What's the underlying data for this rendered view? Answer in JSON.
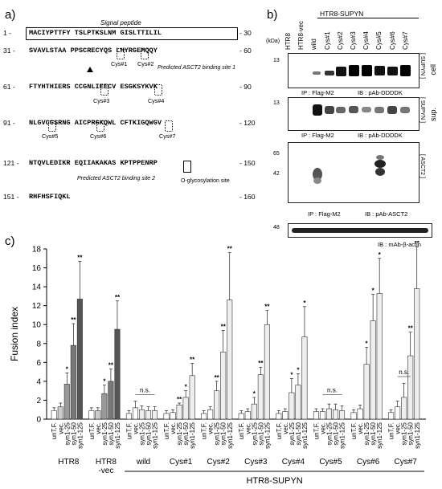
{
  "panel_a": {
    "label": "a)",
    "signal_peptide_title": "Signal peptide",
    "rows": [
      {
        "start": "1 -",
        "seq": "MACIYPTTFY TSLPTKSLNM GISLTTILIL",
        "end": "- 30"
      },
      {
        "start": "31 -",
        "seq": "SVAVLSTAA PPSCRECYQS LHYRGEMQQY",
        "end": "- 60"
      },
      {
        "start": "61 -",
        "seq": "FTYHTHIERS CCGNLIEECV ESGKSYKVK",
        "end": "- 90"
      },
      {
        "start": "91 -",
        "seq": "NLGVCGSRNG AICPRGKQWL CFTKIGQWGV",
        "end": "- 120"
      },
      {
        "start": "121 -",
        "seq": "NTQVLEDIKR EQIIAKAKAS KPTPPENRP",
        "end": "- 150"
      },
      {
        "start": "151 -",
        "seq": "RHFHSFIQKL",
        "end": "- 160"
      }
    ],
    "site1_note": "Predicted ASCT2 binding site 1",
    "site2_note": "Predicted ASCT2 binding site 2",
    "glyco_note": "O-glycosylation site",
    "cys_labels": [
      "Cys#1",
      "Cys#2",
      "Cys#3",
      "Cys#4",
      "Cys#5",
      "Cys#6",
      "Cys#7"
    ]
  },
  "panel_b": {
    "label": "b)",
    "lanes": [
      "HTR8",
      "HTR8-vec",
      "wild",
      "Cys#1",
      "Cys#2",
      "Cys#3",
      "Cys#4",
      "Cys#5",
      "Cys#6",
      "Cys#7"
    ],
    "group_label": "HTR8-SUPYN",
    "kda": "(kDa)",
    "blots": [
      {
        "markers": [
          "13"
        ],
        "side": "[ SUPYN ]",
        "side2": "cell",
        "ip": "IP : Flag-M2",
        "ib": "IB : pAb-DDDDK"
      },
      {
        "markers": [
          "13"
        ],
        "side": "[ SUPYN ]",
        "side2": "sup.",
        "ip": "IP : Flag-M2",
        "ib": "IB : pAb-DDDDK"
      },
      {
        "markers": [
          "65",
          "42"
        ],
        "side": "[ ASCT2 ]",
        "side2": "",
        "ip": "IP : Flag-M2",
        "ib": "IB : pAb-ASCT2"
      },
      {
        "markers": [
          "48"
        ],
        "side": "",
        "side2": "",
        "ip": "",
        "ib": "IB : mAb-β-actin"
      }
    ]
  },
  "panel_c": {
    "label": "c)",
    "group_label": "HTR8-SUPYN",
    "chart_data": {
      "type": "bar",
      "ylabel": "Fusion index",
      "ylim": [
        0,
        18
      ],
      "yticks": [
        0,
        2,
        4,
        6,
        8,
        10,
        12,
        14,
        16,
        18
      ],
      "categories": [
        "unT.F.",
        "vec.",
        "syn1-25",
        "syn1-50",
        "syn1-125"
      ],
      "groups": [
        {
          "name": "HTR8",
          "values": [
            0.9,
            1.3,
            3.7,
            7.8,
            12.7
          ],
          "errors": [
            0.3,
            0.4,
            1.2,
            2.3,
            4.0
          ],
          "sig": [
            "",
            "",
            "*",
            "**",
            "**"
          ]
        },
        {
          "name": "HTR8\n-vec",
          "values": [
            0.9,
            0.9,
            2.7,
            4.0,
            9.5
          ],
          "errors": [
            0.3,
            0.3,
            0.9,
            1.3,
            3.0
          ],
          "sig": [
            "",
            "",
            "*",
            "**",
            "**"
          ]
        },
        {
          "name": "wild",
          "values": [
            0.6,
            1.2,
            1.0,
            0.9,
            0.9
          ],
          "errors": [
            0.3,
            0.7,
            0.4,
            0.4,
            0.4
          ],
          "sig": [
            "",
            "",
            "",
            "",
            ""
          ],
          "ns": "n.s."
        },
        {
          "name": "Cys#1",
          "values": [
            0.6,
            0.7,
            1.5,
            2.3,
            4.6
          ],
          "errors": [
            0.3,
            0.3,
            0.2,
            0.7,
            1.3
          ],
          "sig": [
            "",
            "",
            "**",
            "*",
            "**"
          ]
        },
        {
          "name": "Cys#2",
          "values": [
            0.6,
            1.0,
            3.0,
            7.1,
            12.6
          ],
          "errors": [
            0.3,
            0.3,
            1.0,
            2.3,
            5.0
          ],
          "sig": [
            "",
            "",
            "**",
            "**",
            "**"
          ]
        },
        {
          "name": "Cys#3",
          "values": [
            0.6,
            0.8,
            1.6,
            4.7,
            10.0
          ],
          "errors": [
            0.3,
            0.3,
            0.7,
            0.8,
            1.5
          ],
          "sig": [
            "",
            "",
            "*",
            "**",
            "**"
          ]
        },
        {
          "name": "Cys#4",
          "values": [
            0.6,
            0.8,
            2.8,
            3.6,
            8.7
          ],
          "errors": [
            0.3,
            0.3,
            1.5,
            1.2,
            3.2
          ],
          "sig": [
            "",
            "",
            "*",
            "*",
            "*"
          ]
        },
        {
          "name": "Cys#5",
          "values": [
            0.8,
            0.8,
            1.1,
            1.0,
            0.9
          ],
          "errors": [
            0.3,
            0.3,
            0.5,
            0.6,
            0.5
          ],
          "sig": [
            "",
            "",
            "",
            "",
            ""
          ],
          "ns": "n.s."
        },
        {
          "name": "Cys#6",
          "values": [
            0.7,
            1.1,
            5.8,
            10.4,
            13.3
          ],
          "errors": [
            0.3,
            0.4,
            1.8,
            2.8,
            3.7
          ],
          "sig": [
            "",
            "",
            "*",
            "*",
            "*"
          ]
        },
        {
          "name": "Cys#7",
          "values": [
            0.7,
            1.3,
            2.3,
            6.7,
            13.8
          ],
          "errors": [
            0.3,
            0.6,
            1.5,
            2.5,
            4.4
          ],
          "sig": [
            "",
            "",
            "",
            "**",
            "**"
          ],
          "ns": "n.s."
        }
      ],
      "colors": [
        "#ffffff",
        "#cccccc",
        "#999999",
        "#777777",
        "#555555"
      ]
    }
  }
}
